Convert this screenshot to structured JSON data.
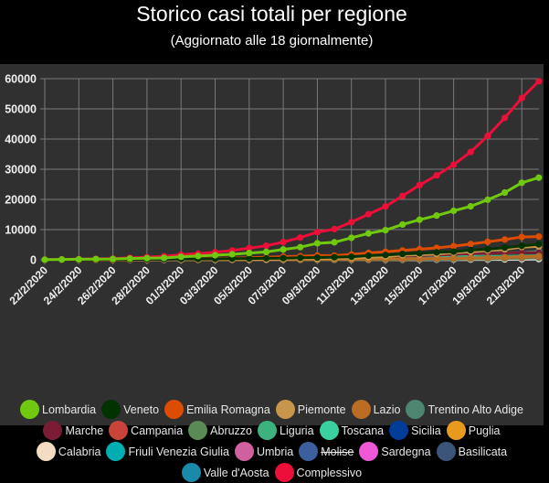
{
  "title": "Storico casi totali per regione",
  "subtitle": "(Aggiornato alle 18 giornalmente)",
  "chart_data": {
    "type": "line",
    "title": "Storico casi totali per regione",
    "subtitle": "(Aggiornato alle 18 giornalmente)",
    "ylim": [
      0,
      60000
    ],
    "yticks": [
      0,
      10000,
      20000,
      30000,
      40000,
      50000,
      60000
    ],
    "x": [
      "22/2/2020",
      "23/2/2020",
      "24/2/2020",
      "25/2/2020",
      "26/2/2020",
      "27/2/2020",
      "28/2/2020",
      "29/2/2020",
      "01/3/2020",
      "02/3/2020",
      "03/3/2020",
      "04/3/2020",
      "05/3/2020",
      "06/3/2020",
      "07/3/2020",
      "08/3/2020",
      "09/3/2020",
      "10/3/2020",
      "11/3/2020",
      "12/3/2020",
      "13/3/2020",
      "14/3/2020",
      "15/3/2020",
      "16/3/2020",
      "17/3/2020",
      "18/3/2020",
      "19/3/2020",
      "20/3/2020",
      "21/3/2020",
      "22/3/2020"
    ],
    "xtick_labels": [
      "22/2/2020",
      "24/2/2020",
      "26/2/2020",
      "28/2/2020",
      "01/3/2020",
      "03/3/2020",
      "05/3/2020",
      "07/3/2020",
      "09/3/2020",
      "11/3/2020",
      "13/3/2020",
      "15/3/2020",
      "17/3/2020",
      "19/3/2020",
      "21/3/2020"
    ],
    "grid": true,
    "legend": "bottom",
    "series": [
      {
        "name": "Lombardia",
        "color": "#71c90f",
        "values": [
          54,
          110,
          172,
          240,
          258,
          403,
          531,
          615,
          984,
          1254,
          1520,
          1820,
          2251,
          2612,
          3420,
          4189,
          5469,
          5791,
          7280,
          8725,
          9820,
          11685,
          13272,
          14649,
          16220,
          17713,
          19884,
          22264,
          25515,
          27206
        ]
      },
      {
        "name": "Veneto",
        "color": "#013200",
        "values": [
          17,
          25,
          43,
          71,
          111,
          151,
          191,
          201,
          263,
          273,
          307,
          360,
          407,
          488,
          543,
          670,
          744,
          856,
          1023,
          1384,
          1595,
          1937,
          2172,
          2473,
          2704,
          3214,
          3484,
          4031,
          4617,
          5122
        ]
      },
      {
        "name": "Emilia Romagna",
        "color": "#dc4d00",
        "values": [
          2,
          9,
          18,
          26,
          47,
          97,
          145,
          217,
          285,
          335,
          420,
          544,
          698,
          816,
          1040,
          1180,
          1386,
          1386,
          1739,
          2263,
          2644,
          3093,
          3522,
          3931,
          4525,
          5214,
          5968,
          6705,
          7555,
          7700
        ]
      },
      {
        "name": "Piemonte",
        "color": "#c8964a",
        "values": [
          0,
          0,
          3,
          3,
          3,
          3,
          11,
          11,
          13,
          51,
          56,
          82,
          108,
          143,
          207,
          350,
          360,
          501,
          580,
          840,
          1111,
          1516,
          1701,
          1897,
          2341,
          2641,
          3061,
          3461,
          4220,
          4420
        ]
      },
      {
        "name": "Lazio",
        "color": "#ba6c22",
        "values": [
          3,
          3,
          3,
          3,
          3,
          3,
          3,
          3,
          6,
          6,
          6,
          8,
          30,
          40,
          49,
          87,
          102,
          116,
          150,
          200,
          248,
          300,
          355,
          429,
          492,
          564,
          692,
          810,
          1010,
          1190
        ]
      },
      {
        "name": "Trentino Alto Adige",
        "color": "#4e8570",
        "values": [
          0,
          0,
          0,
          0,
          0,
          0,
          0,
          0,
          1,
          1,
          2,
          4,
          6,
          9,
          14,
          29,
          47,
          79,
          115,
          173,
          225,
          304,
          403,
          470,
          543,
          620,
          735,
          871,
          1032,
          1238
        ]
      },
      {
        "name": "Marche",
        "color": "#7a1c33",
        "values": [
          0,
          0,
          0,
          0,
          1,
          3,
          6,
          11,
          25,
          46,
          61,
          84,
          124,
          199,
          271,
          394,
          479,
          592,
          779,
          925,
          1133,
          1242,
          1371,
          1567,
          1771,
          2026,
          2130,
          2279,
          2418,
          2421
        ]
      },
      {
        "name": "Campania",
        "color": "#c94438",
        "values": [
          0,
          0,
          0,
          0,
          3,
          3,
          4,
          13,
          17,
          17,
          31,
          31,
          34,
          30,
          47,
          120,
          120,
          154,
          154,
          220,
          295,
          332,
          400,
          460,
          494,
          560,
          617,
          739,
          860,
          1026
        ]
      },
      {
        "name": "Abruzzo",
        "color": "#5a8a55",
        "values": [
          0,
          0,
          0,
          0,
          0,
          0,
          1,
          1,
          2,
          5,
          5,
          6,
          7,
          9,
          11,
          17,
          30,
          38,
          38,
          84,
          89,
          112,
          137,
          176,
          229,
          298,
          355,
          448,
          537,
          689
        ]
      },
      {
        "name": "Liguria",
        "color": "#3cb37f",
        "values": [
          0,
          0,
          0,
          0,
          1,
          17,
          19,
          20,
          23,
          24,
          25,
          22,
          23,
          26,
          20,
          47,
          65,
          75,
          165,
          193,
          264,
          337,
          450,
          493,
          667,
          887,
          1036,
          1140,
          1263,
          1378
        ]
      },
      {
        "name": "Toscana",
        "color": "#3ad0a0",
        "values": [
          0,
          0,
          0,
          2,
          2,
          2,
          11,
          11,
          13,
          19,
          38,
          61,
          79,
          113,
          132,
          166,
          208,
          264,
          320,
          454,
          615,
          781,
          1024,
          1330,
          1582,
          1793,
          2012,
          2277,
          2461,
          2700
        ]
      },
      {
        "name": "Sicilia",
        "color": "#003d99",
        "values": [
          0,
          0,
          0,
          3,
          3,
          3,
          3,
          4,
          9,
          9,
          18,
          18,
          20,
          23,
          34,
          53,
          56,
          64,
          83,
          115,
          121,
          139,
          185,
          234,
          282,
          340,
          385,
          490,
          591,
          721
        ]
      },
      {
        "name": "Puglia",
        "color": "#e79a1e",
        "values": [
          0,
          0,
          0,
          0,
          1,
          1,
          1,
          1,
          3,
          3,
          3,
          6,
          6,
          10,
          19,
          31,
          42,
          50,
          60,
          80,
          93,
          132,
          142,
          214,
          284,
          332,
          392,
          485,
          600,
          707
        ]
      },
      {
        "name": "Calabria",
        "color": "#f2dcc2",
        "values": [
          0,
          0,
          0,
          0,
          0,
          0,
          1,
          1,
          1,
          1,
          1,
          1,
          1,
          1,
          4,
          4,
          5,
          11,
          15,
          19,
          24,
          33,
          39,
          60,
          73,
          96,
          110,
          144,
          216,
          273
        ]
      },
      {
        "name": "Friuli Venezia Giulia",
        "color": "#00adb0",
        "values": [
          0,
          0,
          0,
          0,
          0,
          0,
          1,
          0,
          0,
          9,
          13,
          16,
          18,
          18,
          40,
          52,
          68,
          100,
          116,
          148,
          193,
          241,
          301,
          347,
          386,
          462,
          600,
          671,
          755,
          1024
        ]
      },
      {
        "name": "Umbria",
        "color": "#d060a0",
        "values": [
          0,
          0,
          0,
          0,
          0,
          0,
          0,
          0,
          0,
          0,
          1,
          2,
          7,
          8,
          11,
          15,
          20,
          30,
          55,
          79,
          95,
          124,
          137,
          162,
          199,
          266,
          340,
          434,
          527,
          694
        ]
      },
      {
        "name": "Molise",
        "color": "#3e5f9e",
        "hidden": true,
        "values": [
          0,
          0,
          0,
          0,
          0,
          0,
          0,
          0,
          0,
          0,
          0,
          0,
          0,
          0,
          1,
          1,
          1,
          1,
          4,
          5,
          6,
          10,
          10,
          12,
          15,
          18,
          19,
          38,
          54,
          89
        ]
      },
      {
        "name": "Sardegna",
        "color": "#f058d8",
        "values": [
          0,
          0,
          0,
          0,
          0,
          1,
          1,
          0,
          0,
          0,
          0,
          2,
          2,
          7,
          7,
          7,
          17,
          19,
          30,
          39,
          45,
          52,
          60,
          80,
          101,
          119,
          172,
          223,
          284,
          339
        ]
      },
      {
        "name": "Basilicata",
        "color": "#3b5578",
        "values": [
          0,
          0,
          0,
          0,
          0,
          0,
          0,
          0,
          0,
          0,
          0,
          0,
          0,
          0,
          0,
          0,
          0,
          3,
          3,
          5,
          10,
          11,
          12,
          12,
          19,
          23,
          24,
          37,
          45,
          64
        ]
      },
      {
        "name": "Valle d'Aosta",
        "color": "#1a8aaa",
        "values": [
          0,
          0,
          0,
          0,
          0,
          0,
          0,
          0,
          0,
          0,
          0,
          0,
          0,
          0,
          0,
          1,
          2,
          3,
          9,
          12,
          13,
          37,
          55,
          65,
          95,
          151,
          188,
          263,
          301,
          353
        ]
      },
      {
        "name": "Complessivo",
        "color": "#ec0f3a",
        "values": [
          79,
          152,
          229,
          322,
          400,
          650,
          888,
          1128,
          1694,
          2036,
          2502,
          3089,
          3858,
          4636,
          5883,
          7375,
          9172,
          10149,
          12462,
          15113,
          17660,
          21157,
          24747,
          27980,
          31506,
          35713,
          41035,
          47021,
          53578,
          59138
        ]
      }
    ]
  }
}
